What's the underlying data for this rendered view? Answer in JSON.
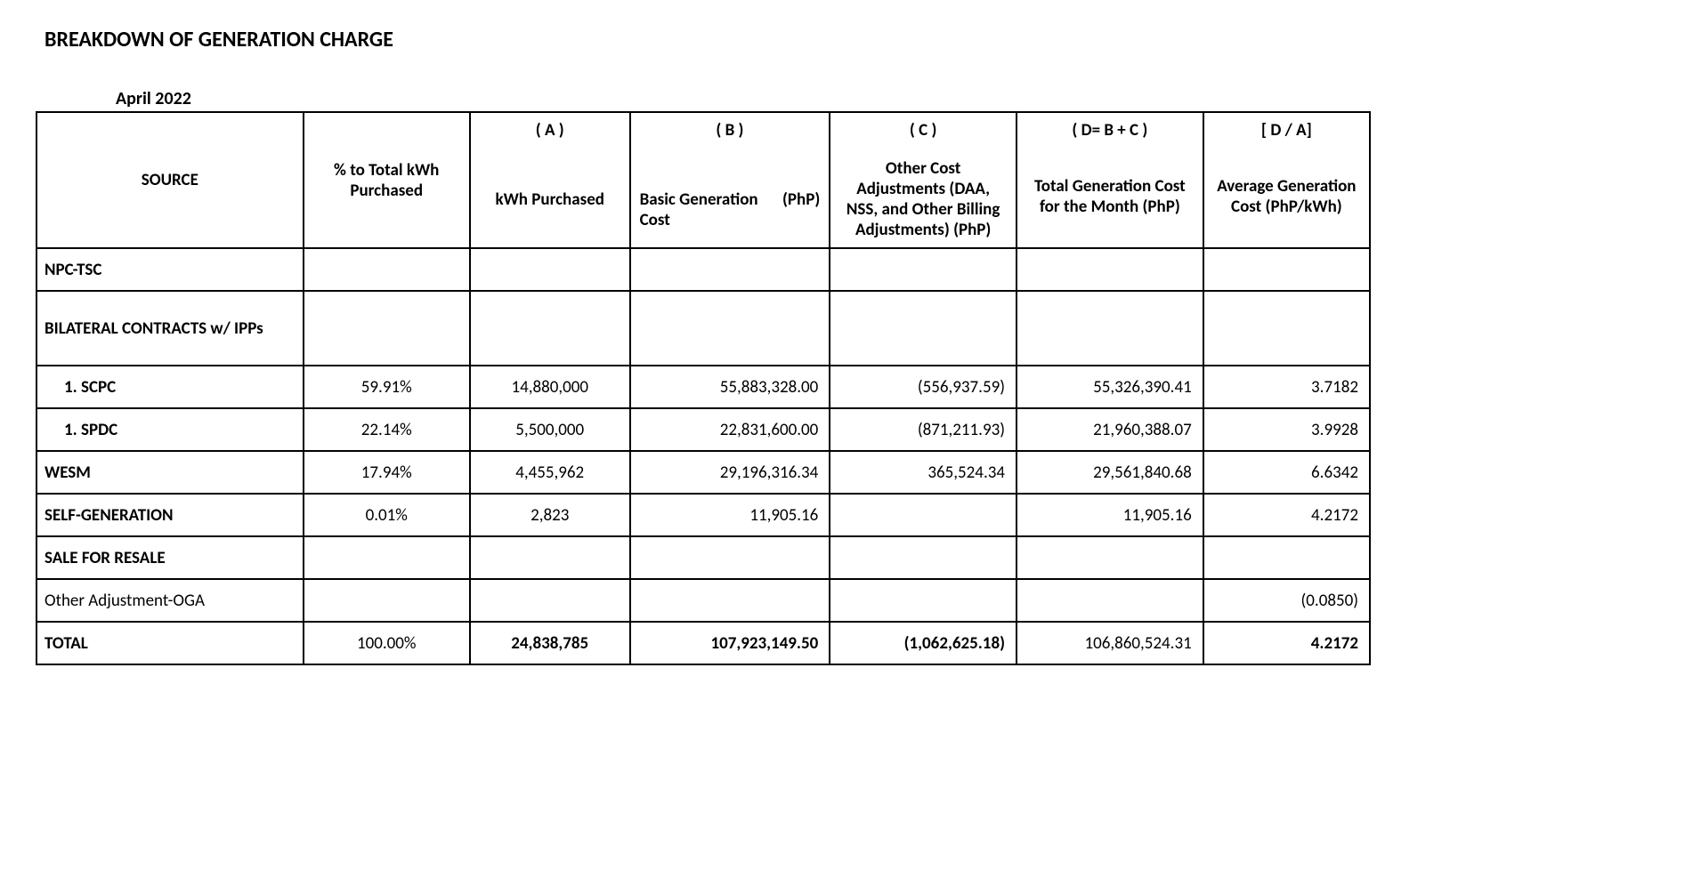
{
  "title": "BREAKDOWN OF GENERATION CHARGE",
  "period": "April 2022",
  "table": {
    "headers": {
      "source": "SOURCE",
      "pct": "% to Total kWh Purchased",
      "a_tag": "( A )",
      "a_label": "kWh Purchased",
      "b_tag": "( B )",
      "b_label_left": "Basic Generation Cost",
      "b_label_right": "(PhP)",
      "c_tag": "( C )",
      "c_label": "Other Cost Adjustments (DAA, NSS, and Other Billing Adjustments) (PhP)",
      "d_tag": "( D= B + C )",
      "d_label": "Total Generation Cost for the Month (PhP)",
      "da_tag": "[ D / A]",
      "da_label": "Average Generation Cost (PhP/kWh)"
    },
    "rows": [
      {
        "source": "NPC-TSC",
        "style": "left",
        "pct": "",
        "a": "",
        "b": "",
        "c": "",
        "d": "",
        "da": ""
      },
      {
        "source": "BILATERAL CONTRACTS w/ IPPs",
        "style": "left",
        "pct": "",
        "a": "",
        "b": "",
        "c": "",
        "d": "",
        "da": "",
        "tall": true
      },
      {
        "source": "1.  SCPC",
        "style": "left-indent",
        "pct": "59.91%",
        "a": "14,880,000",
        "b": "55,883,328.00",
        "c": "(556,937.59)",
        "d": "55,326,390.41",
        "da": "3.7182"
      },
      {
        "source": "1.  SPDC",
        "style": "left-indent",
        "pct": "22.14%",
        "a": "5,500,000",
        "b": "22,831,600.00",
        "c": "(871,211.93)",
        "d": "21,960,388.07",
        "da": "3.9928"
      },
      {
        "source": "WESM",
        "style": "left",
        "pct": "17.94%",
        "a": "4,455,962",
        "b": "29,196,316.34",
        "c": "365,524.34",
        "d": "29,561,840.68",
        "da": "6.6342"
      },
      {
        "source": "SELF-GENERATION",
        "style": "left",
        "pct": "0.01%",
        "a": "2,823",
        "b": "11,905.16",
        "c": "",
        "d": "11,905.16",
        "da": "4.2172"
      },
      {
        "source": "SALE FOR RESALE",
        "style": "left",
        "pct": "",
        "a": "",
        "b": "",
        "c": "",
        "d": "",
        "da": ""
      },
      {
        "source": "Other Adjustment-OGA",
        "style": "left",
        "normal": true,
        "pct": "",
        "a": "",
        "b": "",
        "c": "",
        "d": "",
        "da": "(0.0850)"
      }
    ],
    "total": {
      "source": "TOTAL",
      "pct": "100.00%",
      "a": "24,838,785",
      "b": "107,923,149.50",
      "c": "(1,062,625.18)",
      "d": "106,860,524.31",
      "da": "4.2172"
    }
  }
}
